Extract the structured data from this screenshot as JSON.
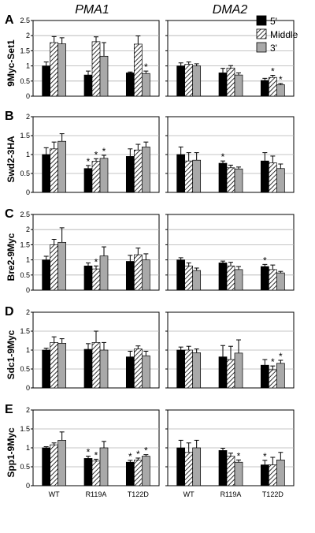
{
  "figure": {
    "column_titles": [
      "PMA1",
      "DMA2"
    ]
  },
  "colors": {
    "five_prime": "#000000",
    "three_prime": "#a9a9a9",
    "gridline": "#b0b0b0"
  },
  "chart_data": [
    {
      "type": "bar",
      "panel": "A",
      "ylabel": "9Myc-Set1",
      "column_title": "PMA1",
      "categories": [
        "",
        "",
        ""
      ],
      "yticks": [
        "0",
        "0.5",
        "1",
        "1.5",
        "2",
        "2.5"
      ],
      "ylim": [
        0,
        2.5
      ],
      "series": [
        {
          "name": "5'",
          "values": [
            1.0,
            0.7,
            0.77
          ],
          "errors": [
            0.13,
            0.13,
            0.03
          ],
          "stars": [
            false,
            false,
            false
          ]
        },
        {
          "name": "Middle",
          "values": [
            1.77,
            1.8,
            1.72
          ],
          "errors": [
            0.2,
            0.16,
            0.27
          ],
          "stars": [
            false,
            false,
            false
          ]
        },
        {
          "name": "3'",
          "values": [
            1.73,
            1.32,
            0.75
          ],
          "errors": [
            0.2,
            0.45,
            0.08
          ],
          "stars": [
            false,
            false,
            true
          ]
        }
      ],
      "grid": true
    },
    {
      "type": "bar",
      "panel": "A",
      "ylabel": "",
      "column_title": "DMA2",
      "categories": [
        "",
        "",
        ""
      ],
      "yticks": [
        "",
        "",
        "",
        "",
        "",
        ""
      ],
      "ylim": [
        0,
        2.5
      ],
      "series": [
        {
          "name": "5'",
          "values": [
            1.0,
            0.77,
            0.52
          ],
          "errors": [
            0.1,
            0.15,
            0.07
          ],
          "stars": [
            false,
            false,
            false
          ]
        },
        {
          "name": "Middle",
          "values": [
            1.05,
            0.93,
            0.62
          ],
          "errors": [
            0.08,
            0.08,
            0.07
          ],
          "stars": [
            false,
            false,
            true
          ]
        },
        {
          "name": "3'",
          "values": [
            1.0,
            0.7,
            0.38
          ],
          "errors": [
            0.07,
            0.07,
            0.04
          ],
          "stars": [
            false,
            false,
            true
          ]
        }
      ],
      "legend": true,
      "grid": true
    },
    {
      "type": "bar",
      "panel": "B",
      "ylabel": "Swd2-3HA",
      "categories": [
        "",
        "",
        ""
      ],
      "yticks": [
        "0",
        "0.5",
        "1",
        "1.5",
        "2"
      ],
      "ylim": [
        0,
        2
      ],
      "series": [
        {
          "name": "5'",
          "values": [
            1.0,
            0.63,
            0.95
          ],
          "errors": [
            0.18,
            0.08,
            0.2
          ],
          "stars": [
            false,
            true,
            false
          ]
        },
        {
          "name": "Middle",
          "values": [
            1.15,
            0.82,
            1.12
          ],
          "errors": [
            0.18,
            0.07,
            0.15
          ],
          "stars": [
            false,
            true,
            false
          ]
        },
        {
          "name": "3'",
          "values": [
            1.35,
            0.9,
            1.2
          ],
          "errors": [
            0.2,
            0.08,
            0.13
          ],
          "stars": [
            false,
            true,
            false
          ]
        }
      ],
      "grid": true
    },
    {
      "type": "bar",
      "panel": "B",
      "ylabel": "",
      "categories": [
        "",
        "",
        ""
      ],
      "yticks": [
        "",
        "",
        "",
        "",
        ""
      ],
      "ylim": [
        0,
        2
      ],
      "series": [
        {
          "name": "5'",
          "values": [
            1.0,
            0.77,
            0.83
          ],
          "errors": [
            0.2,
            0.06,
            0.22
          ],
          "stars": [
            false,
            true,
            false
          ]
        },
        {
          "name": "Middle",
          "values": [
            0.83,
            0.65,
            0.78
          ],
          "errors": [
            0.22,
            0.07,
            0.18
          ],
          "stars": [
            false,
            false,
            false
          ]
        },
        {
          "name": "3'",
          "values": [
            0.85,
            0.62,
            0.63
          ],
          "errors": [
            0.2,
            0.05,
            0.12
          ],
          "stars": [
            false,
            false,
            false
          ]
        }
      ],
      "grid": true
    },
    {
      "type": "bar",
      "panel": "C",
      "ylabel": "Bre2-9Myc",
      "categories": [
        "",
        "",
        ""
      ],
      "yticks": [
        "0",
        "0.5",
        "1",
        "1.5",
        "2",
        "2.5"
      ],
      "ylim": [
        0,
        2.5
      ],
      "series": [
        {
          "name": "5'",
          "values": [
            1.0,
            0.8,
            0.95
          ],
          "errors": [
            0.12,
            0.1,
            0.2
          ],
          "stars": [
            false,
            false,
            false
          ]
        },
        {
          "name": "Middle",
          "values": [
            1.5,
            0.7,
            1.17
          ],
          "errors": [
            0.18,
            0.1,
            0.22
          ],
          "stars": [
            false,
            true,
            false
          ]
        },
        {
          "name": "3'",
          "values": [
            1.58,
            1.13,
            1.0
          ],
          "errors": [
            0.48,
            0.3,
            0.2
          ],
          "stars": [
            false,
            false,
            false
          ]
        }
      ],
      "grid": true
    },
    {
      "type": "bar",
      "panel": "C",
      "ylabel": "",
      "categories": [
        "",
        "",
        ""
      ],
      "yticks": [
        "",
        "",
        "",
        "",
        "",
        ""
      ],
      "ylim": [
        0,
        2.5
      ],
      "series": [
        {
          "name": "5'",
          "values": [
            1.0,
            0.9,
            0.78
          ],
          "errors": [
            0.07,
            0.06,
            0.07
          ],
          "stars": [
            false,
            false,
            true
          ]
        },
        {
          "name": "Middle",
          "values": [
            0.8,
            0.8,
            0.68
          ],
          "errors": [
            0.1,
            0.12,
            0.15
          ],
          "stars": [
            false,
            false,
            false
          ]
        },
        {
          "name": "3'",
          "values": [
            0.65,
            0.68,
            0.57
          ],
          "errors": [
            0.08,
            0.1,
            0.05
          ],
          "stars": [
            false,
            false,
            false
          ]
        }
      ],
      "grid": true
    },
    {
      "type": "bar",
      "panel": "D",
      "ylabel": "Sdc1-9Myc",
      "categories": [
        "",
        "",
        ""
      ],
      "yticks": [
        "0",
        "0.5",
        "1",
        "1.5",
        "2"
      ],
      "ylim": [
        0,
        2
      ],
      "series": [
        {
          "name": "5'",
          "values": [
            1.0,
            1.02,
            0.82
          ],
          "errors": [
            0.05,
            0.15,
            0.15
          ],
          "stars": [
            false,
            false,
            false
          ]
        },
        {
          "name": "Middle",
          "values": [
            1.2,
            1.2,
            1.03
          ],
          "errors": [
            0.15,
            0.3,
            0.08
          ],
          "stars": [
            false,
            false,
            false
          ]
        },
        {
          "name": "3'",
          "values": [
            1.18,
            1.0,
            0.85
          ],
          "errors": [
            0.12,
            0.2,
            0.12
          ],
          "stars": [
            false,
            false,
            false
          ]
        }
      ],
      "grid": true
    },
    {
      "type": "bar",
      "panel": "D",
      "ylabel": "",
      "categories": [
        "",
        "",
        ""
      ],
      "yticks": [
        "",
        "",
        "",
        "",
        ""
      ],
      "ylim": [
        0,
        2
      ],
      "series": [
        {
          "name": "5'",
          "values": [
            1.0,
            0.82,
            0.6
          ],
          "errors": [
            0.08,
            0.3,
            0.15
          ],
          "stars": [
            false,
            false,
            false
          ]
        },
        {
          "name": "Middle",
          "values": [
            1.0,
            0.75,
            0.48
          ],
          "errors": [
            0.1,
            0.35,
            0.1
          ],
          "stars": [
            false,
            false,
            true
          ]
        },
        {
          "name": "3'",
          "values": [
            0.93,
            0.92,
            0.65
          ],
          "errors": [
            0.1,
            0.35,
            0.08
          ],
          "stars": [
            false,
            false,
            true
          ]
        }
      ],
      "grid": true
    },
    {
      "type": "bar",
      "panel": "E",
      "ylabel": "Spp1-9Myc",
      "categories": [
        "WT",
        "R119A",
        "T122D"
      ],
      "yticks": [
        "0",
        "0.5",
        "1",
        "1.5",
        "2"
      ],
      "ylim": [
        0,
        2
      ],
      "series": [
        {
          "name": "5'",
          "values": [
            1.0,
            0.72,
            0.62
          ],
          "errors": [
            0.03,
            0.06,
            0.05
          ],
          "stars": [
            false,
            true,
            true
          ]
        },
        {
          "name": "Middle",
          "values": [
            1.08,
            0.65,
            0.68
          ],
          "errors": [
            0.05,
            0.05,
            0.05
          ],
          "stars": [
            false,
            true,
            true
          ]
        },
        {
          "name": "3'",
          "values": [
            1.2,
            1.0,
            0.78
          ],
          "errors": [
            0.22,
            0.17,
            0.04
          ],
          "stars": [
            false,
            false,
            true
          ]
        }
      ],
      "grid": true
    },
    {
      "type": "bar",
      "panel": "E",
      "ylabel": "",
      "categories": [
        "WT",
        "R119A",
        "T122D"
      ],
      "yticks": [
        "",
        "",
        "",
        "",
        ""
      ],
      "ylim": [
        0,
        2
      ],
      "series": [
        {
          "name": "5'",
          "values": [
            1.0,
            0.93,
            0.55
          ],
          "errors": [
            0.2,
            0.06,
            0.12
          ],
          "stars": [
            false,
            false,
            true
          ]
        },
        {
          "name": "Middle",
          "values": [
            0.88,
            0.78,
            0.55
          ],
          "errors": [
            0.25,
            0.08,
            0.2
          ],
          "stars": [
            false,
            false,
            false
          ]
        },
        {
          "name": "3'",
          "values": [
            1.0,
            0.62,
            0.68
          ],
          "errors": [
            0.2,
            0.06,
            0.2
          ],
          "stars": [
            false,
            true,
            false
          ]
        }
      ],
      "grid": true
    }
  ]
}
